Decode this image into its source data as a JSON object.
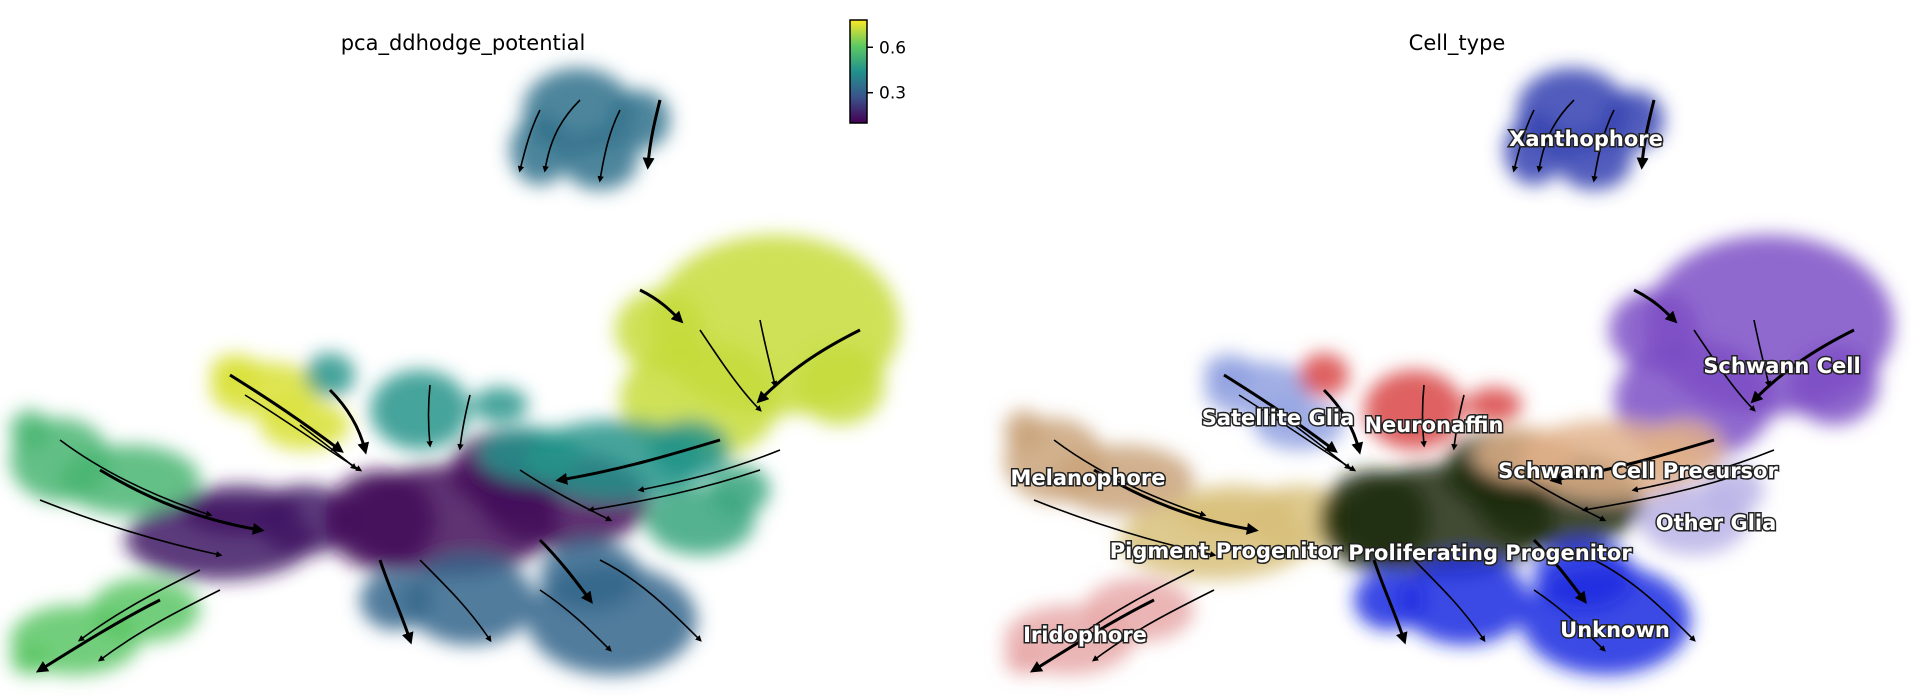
{
  "chart_data": [
    {
      "type": "scatter",
      "title": "pca_ddhodge_potential",
      "xlabel": "",
      "ylabel": "",
      "colorbar": {
        "colormap": "viridis",
        "ticks": [
          {
            "value": 0.6,
            "label": "0.6"
          },
          {
            "value": 0.3,
            "label": "0.3"
          }
        ],
        "range": [
          0.1,
          0.78
        ]
      },
      "overlay": "velocity streamlines",
      "regions": [
        {
          "cluster": "Xanthophore",
          "value": 0.35
        },
        {
          "cluster": "Schwann Cell",
          "value": 0.72
        },
        {
          "cluster": "Satellite Glia",
          "value": 0.74
        },
        {
          "cluster": "Neuronaffin",
          "value": 0.45
        },
        {
          "cluster": "Melanophore",
          "value": 0.55
        },
        {
          "cluster": "Pigment Progenitor",
          "value": 0.15
        },
        {
          "cluster": "Proliferating Progenitor",
          "value": 0.12
        },
        {
          "cluster": "Schwann Cell Precursor",
          "value": 0.45
        },
        {
          "cluster": "Other Glia",
          "value": 0.5
        },
        {
          "cluster": "Unknown",
          "value": 0.32
        },
        {
          "cluster": "Iridophore",
          "value": 0.6
        }
      ]
    },
    {
      "type": "scatter",
      "title": "Cell_type",
      "xlabel": "",
      "ylabel": "",
      "overlay": "velocity streamlines",
      "categories": [
        {
          "name": "Xanthophore",
          "color": "#3340b0"
        },
        {
          "name": "Schwann Cell",
          "color": "#7d4fc6"
        },
        {
          "name": "Satellite Glia",
          "color": "#8fa0e0"
        },
        {
          "name": "Neuronaffin",
          "color": "#d94444"
        },
        {
          "name": "Melanophore",
          "color": "#c9a27a"
        },
        {
          "name": "Schwann Cell Precursor",
          "color": "#e0b08a"
        },
        {
          "name": "Pigment Progenitor",
          "color": "#d8c07a"
        },
        {
          "name": "Proliferating Progenitor",
          "color": "#1d2a08"
        },
        {
          "name": "Other Glia",
          "color": "#b9b2e6"
        },
        {
          "name": "Iridophore",
          "color": "#e8a8a8"
        },
        {
          "name": "Unknown",
          "color": "#1a2ae0"
        }
      ]
    }
  ]
}
